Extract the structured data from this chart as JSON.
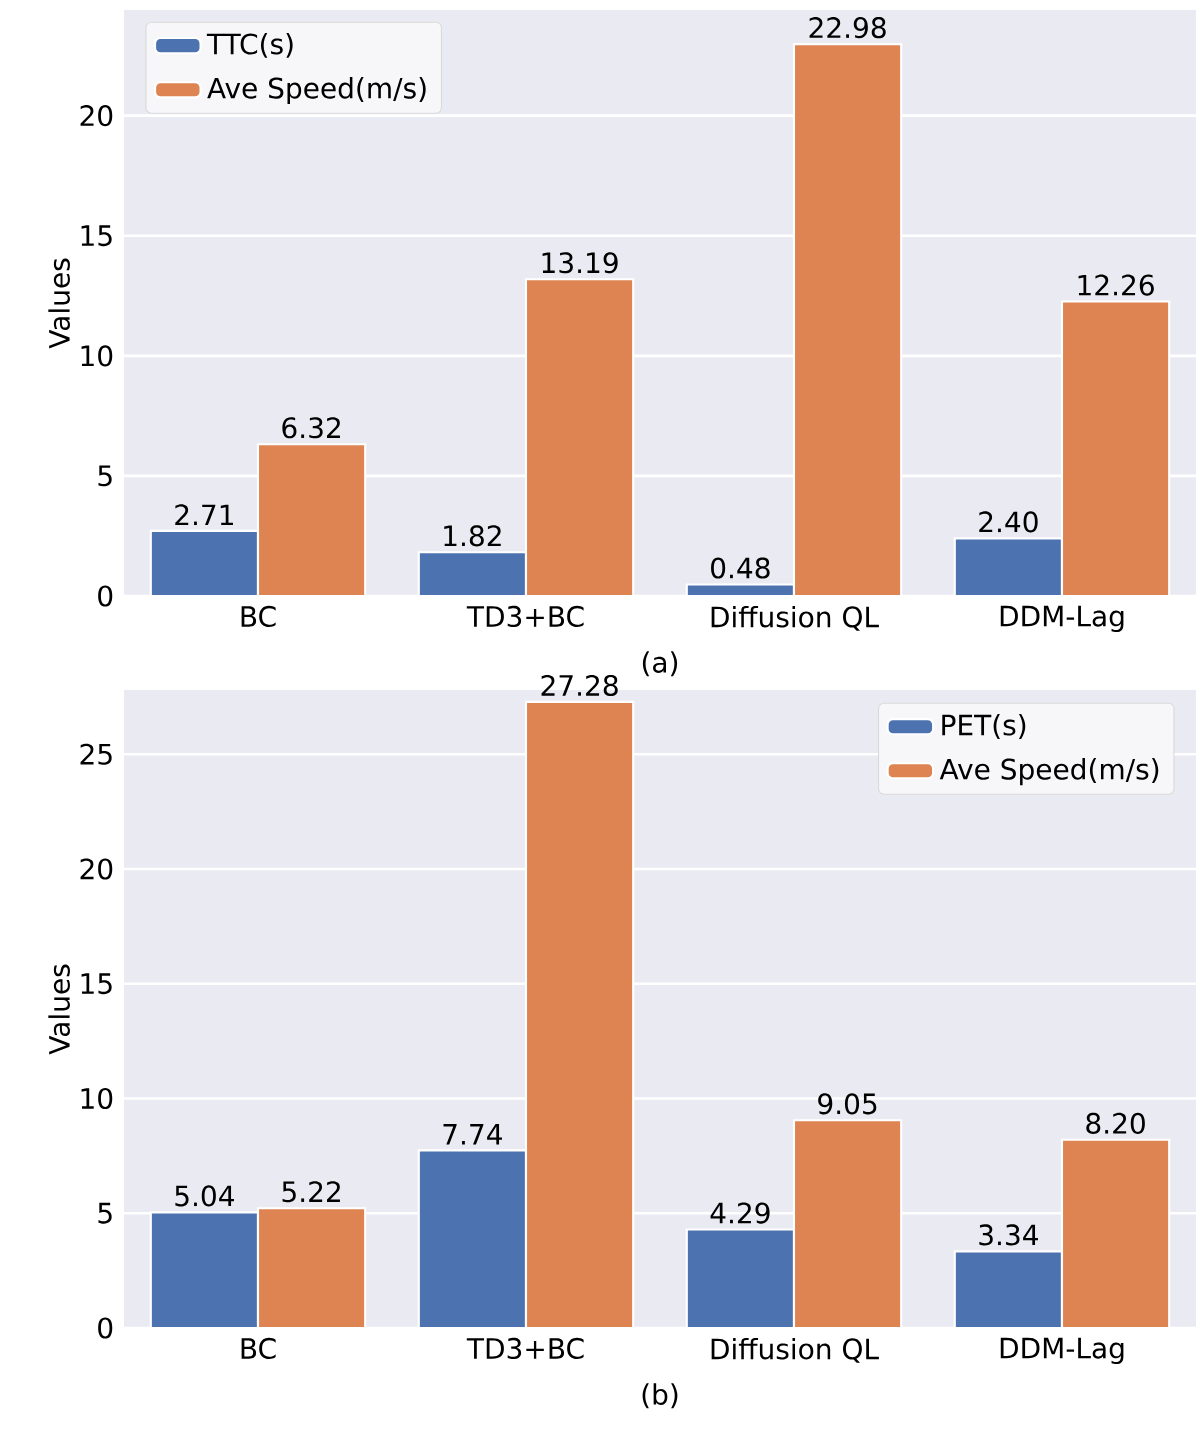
{
  "chart_data": [
    {
      "type": "bar",
      "categories": [
        "BC",
        "TD3+BC",
        "Diffusion QL",
        "DDM-Lag"
      ],
      "xlabel": "(a)",
      "ylabel": "Values",
      "ylim": [
        0,
        24.4
      ],
      "yticks": [
        0,
        5,
        10,
        15,
        20
      ],
      "grid": "y",
      "legend": "top left",
      "series": [
        {
          "name": "TTC(s)",
          "color": "#4c72b0",
          "values": [
            2.71,
            1.82,
            0.48,
            2.4
          ],
          "value_labels": [
            "2.71",
            "1.82",
            "0.48",
            "2.40"
          ]
        },
        {
          "name": "Ave Speed(m/s)",
          "color": "#dd8452",
          "values": [
            6.32,
            13.19,
            22.98,
            12.26
          ],
          "value_labels": [
            "6.32",
            "13.19",
            "22.98",
            "12.26"
          ]
        }
      ]
    },
    {
      "type": "bar",
      "categories": [
        "BC",
        "TD3+BC",
        "Diffusion QL",
        "DDM-Lag"
      ],
      "xlabel": "(b)",
      "ylabel": "Values",
      "ylim": [
        0,
        27.8
      ],
      "yticks": [
        0,
        5,
        10,
        15,
        20,
        25
      ],
      "grid": "y",
      "legend": "top right",
      "series": [
        {
          "name": "PET(s)",
          "color": "#4c72b0",
          "values": [
            5.04,
            7.74,
            4.29,
            3.34
          ],
          "value_labels": [
            "5.04",
            "7.74",
            "4.29",
            "3.34"
          ]
        },
        {
          "name": "Ave Speed(m/s)",
          "color": "#dd8452",
          "values": [
            5.22,
            27.28,
            9.05,
            8.2
          ],
          "value_labels": [
            "5.22",
            "27.28",
            "9.05",
            "8.20"
          ]
        }
      ]
    }
  ]
}
